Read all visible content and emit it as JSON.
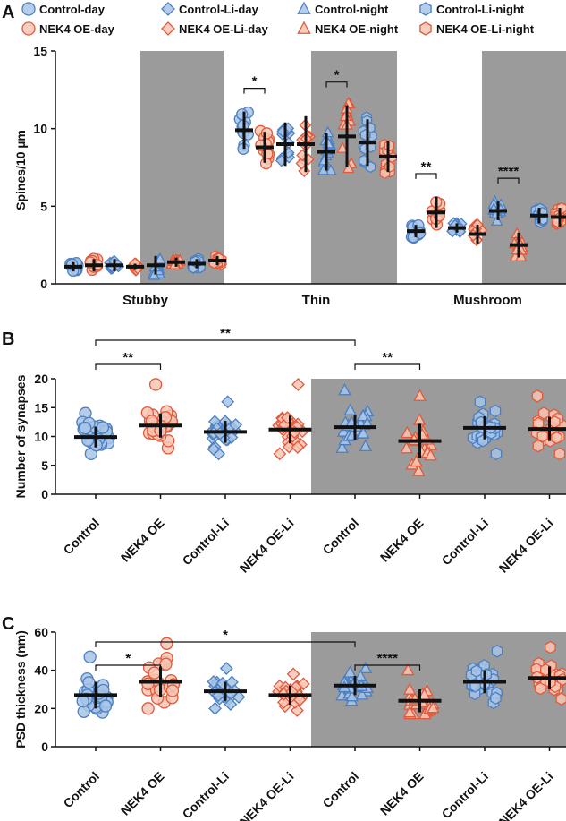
{
  "colors": {
    "blue_fill": "#a9c4e6",
    "blue_stroke": "#4a7fc1",
    "red_fill": "#f7c6b5",
    "red_stroke": "#e05a3a",
    "night_bg": "#9b9b9b",
    "axis": "#111111",
    "mean_bar": "#111111"
  },
  "legend": [
    {
      "label": "Control-day",
      "shape": "circle",
      "group": "blue"
    },
    {
      "label": "Control-Li-day",
      "shape": "diamond",
      "group": "blue"
    },
    {
      "label": "Control-night",
      "shape": "triangle",
      "group": "blue"
    },
    {
      "label": "Control-Li-night",
      "shape": "hexagon",
      "group": "blue"
    },
    {
      "label": "NEK4 OE-day",
      "shape": "circle",
      "group": "red"
    },
    {
      "label": "NEK4 OE-Li-day",
      "shape": "diamond",
      "group": "red"
    },
    {
      "label": "NEK4 OE-night",
      "shape": "triangle",
      "group": "red"
    },
    {
      "label": "NEK4 OE-Li-night",
      "shape": "hexagon",
      "group": "red"
    }
  ],
  "chart_data": [
    {
      "panel": "A",
      "type": "scatter",
      "ylabel": "Spines/10 µm",
      "ylim": [
        0,
        15
      ],
      "yticks": [
        0,
        5,
        10,
        15
      ],
      "categories": [
        "Stubby",
        "Thin",
        "Mushroom"
      ],
      "series_order": [
        "Control-day",
        "NEK4 OE-day",
        "Control-Li-day",
        "NEK4 OE-Li-day",
        "Control-night",
        "NEK4 OE-night",
        "Control-Li-night",
        "NEK4 OE-Li-night"
      ],
      "means": {
        "Stubby": [
          1.1,
          1.2,
          1.2,
          1.1,
          1.2,
          1.4,
          1.3,
          1.5
        ],
        "Thin": [
          9.9,
          8.8,
          9.0,
          9.0,
          8.5,
          9.5,
          9.1,
          8.2
        ],
        "Mushroom": [
          3.4,
          4.6,
          3.6,
          3.2,
          4.7,
          2.5,
          4.4,
          4.3
        ]
      },
      "sd": {
        "Stubby": [
          0.3,
          0.4,
          0.4,
          0.2,
          0.6,
          0.3,
          0.3,
          0.3
        ],
        "Thin": [
          1.2,
          1.0,
          1.4,
          1.8,
          1.2,
          2.0,
          1.5,
          1.0
        ],
        "Mushroom": [
          0.4,
          1.0,
          0.3,
          0.6,
          0.6,
          0.8,
          0.5,
          0.6
        ]
      },
      "significance": [
        {
          "category": "Thin",
          "from": 0,
          "to": 1,
          "label": "*"
        },
        {
          "category": "Thin",
          "from": 4,
          "to": 5,
          "label": "*"
        },
        {
          "category": "Mushroom",
          "from": 0,
          "to": 1,
          "label": "**"
        },
        {
          "category": "Mushroom",
          "from": 4,
          "to": 5,
          "label": "****"
        }
      ]
    },
    {
      "panel": "B",
      "type": "scatter",
      "ylabel": "Number of synapses",
      "ylim": [
        0,
        20
      ],
      "yticks": [
        0,
        5,
        10,
        15,
        20
      ],
      "categories": [
        "Control",
        "NEK4 OE",
        "Control-Li",
        "NEK4 OE-Li",
        "Control",
        "NEK4 OE",
        "Control-Li",
        "NEK4 OE-Li"
      ],
      "shapes": [
        "circle",
        "circle",
        "diamond",
        "diamond",
        "triangle",
        "triangle",
        "hexagon",
        "hexagon"
      ],
      "groups": [
        "blue",
        "red",
        "blue",
        "red",
        "blue",
        "red",
        "blue",
        "red"
      ],
      "means": [
        9.9,
        11.9,
        10.8,
        11.2,
        11.6,
        9.2,
        11.5,
        11.3
      ],
      "sd": [
        1.8,
        2.1,
        1.9,
        2.4,
        2.2,
        3.0,
        2.0,
        2.1
      ],
      "ranges": [
        [
          7,
          14
        ],
        [
          8,
          19
        ],
        [
          7,
          16
        ],
        [
          7,
          19
        ],
        [
          8,
          18
        ],
        [
          4,
          17
        ],
        [
          7,
          16
        ],
        [
          7,
          17
        ]
      ],
      "significance": [
        {
          "from": 0,
          "to": 1,
          "label": "**"
        },
        {
          "from": 0,
          "to": 4,
          "label": "**"
        },
        {
          "from": 4,
          "to": 5,
          "label": "**"
        }
      ]
    },
    {
      "panel": "C",
      "type": "scatter",
      "ylabel": "PSD thickness (nm)",
      "ylim": [
        0,
        60
      ],
      "yticks": [
        0,
        20,
        40,
        60
      ],
      "categories": [
        "Control",
        "NEK4 OE",
        "Control-Li",
        "NEK4 OE-Li",
        "Control",
        "NEK4 OE",
        "Control-Li",
        "NEK4 OE-Li"
      ],
      "shapes": [
        "circle",
        "circle",
        "diamond",
        "diamond",
        "triangle",
        "triangle",
        "hexagon",
        "hexagon"
      ],
      "groups": [
        "blue",
        "red",
        "blue",
        "red",
        "blue",
        "red",
        "blue",
        "red"
      ],
      "means": [
        27,
        34,
        29,
        27,
        32,
        24,
        34,
        36
      ],
      "sd": [
        7,
        8,
        5,
        5,
        5,
        6,
        6,
        6
      ],
      "ranges": [
        [
          18,
          47
        ],
        [
          20,
          54
        ],
        [
          20,
          41
        ],
        [
          19,
          38
        ],
        [
          24,
          41
        ],
        [
          17,
          40
        ],
        [
          23,
          50
        ],
        [
          25,
          52
        ]
      ],
      "significance": [
        {
          "from": 0,
          "to": 1,
          "label": "*"
        },
        {
          "from": 0,
          "to": 4,
          "label": "*"
        },
        {
          "from": 4,
          "to": 5,
          "label": "****"
        }
      ]
    }
  ]
}
